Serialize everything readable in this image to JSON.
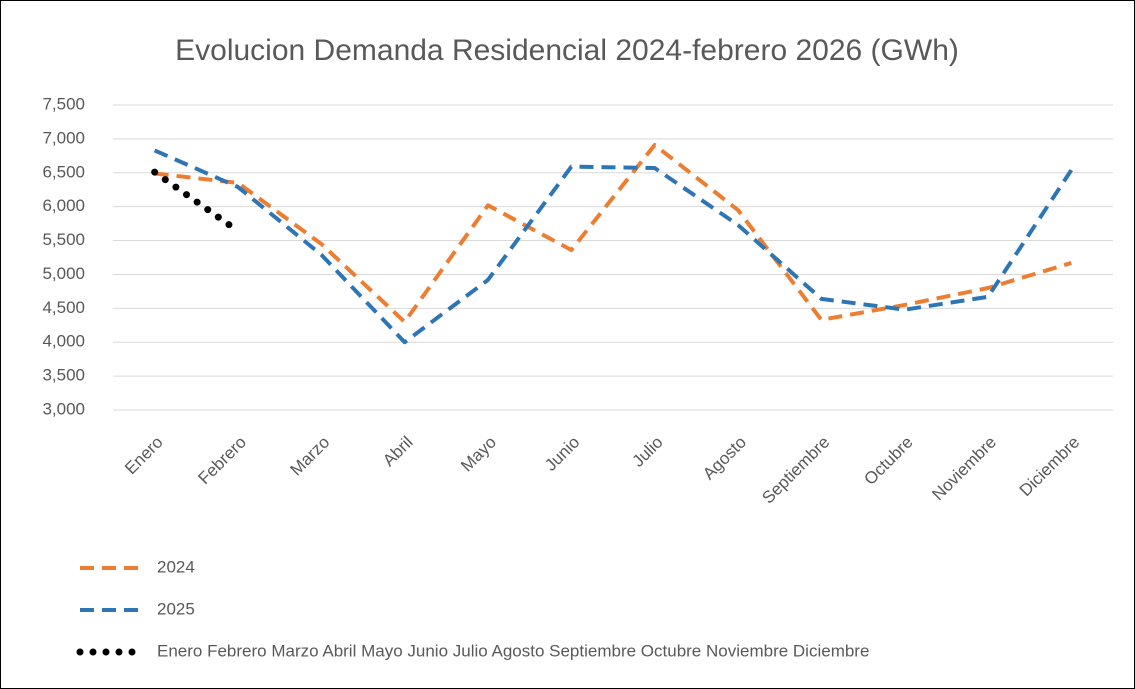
{
  "chart_data": {
    "type": "line",
    "title": "Evolucion Demanda Residencial 2024-febrero 2026 (GWh)",
    "categories": [
      "Enero",
      "Febrero",
      "Marzo",
      "Abril",
      "Mayo",
      "Junio",
      "Julio",
      "Agosto",
      "Septiembre",
      "Octubre",
      "Noviembre",
      "Diciembre"
    ],
    "series": [
      {
        "name": "2024",
        "color": "#ed7d31",
        "style": "dashed",
        "values": [
          6490,
          6350,
          5450,
          4300,
          6020,
          5360,
          6910,
          5950,
          4330,
          4550,
          4800,
          5170
        ]
      },
      {
        "name": "2025",
        "color": "#2e75b6",
        "style": "dashed",
        "values": [
          6830,
          6290,
          5290,
          4000,
          4920,
          6590,
          6570,
          5730,
          4640,
          4480,
          4670,
          6540
        ]
      },
      {
        "name": "Enero Febrero Marzo Abril Mayo Junio Julio Agosto Septiembre Octubre Noviembre Diciembre",
        "color": "#000000",
        "style": "dotted",
        "values": [
          6510,
          5640,
          null,
          null,
          null,
          null,
          null,
          null,
          null,
          null,
          null,
          null
        ]
      }
    ],
    "ylim": [
      3000,
      7500
    ],
    "yticks": [
      {
        "value": 3000,
        "label": "3,000"
      },
      {
        "value": 3500,
        "label": "3,500"
      },
      {
        "value": 4000,
        "label": "4,000"
      },
      {
        "value": 4500,
        "label": "4,500"
      },
      {
        "value": 5000,
        "label": "5,000"
      },
      {
        "value": 5500,
        "label": "5,500"
      },
      {
        "value": 6000,
        "label": "6,000"
      },
      {
        "value": 6500,
        "label": "6,500"
      },
      {
        "value": 7000,
        "label": "7,000"
      },
      {
        "value": 7500,
        "label": "7,500"
      }
    ],
    "grid": true,
    "legend": "bottom-left"
  }
}
